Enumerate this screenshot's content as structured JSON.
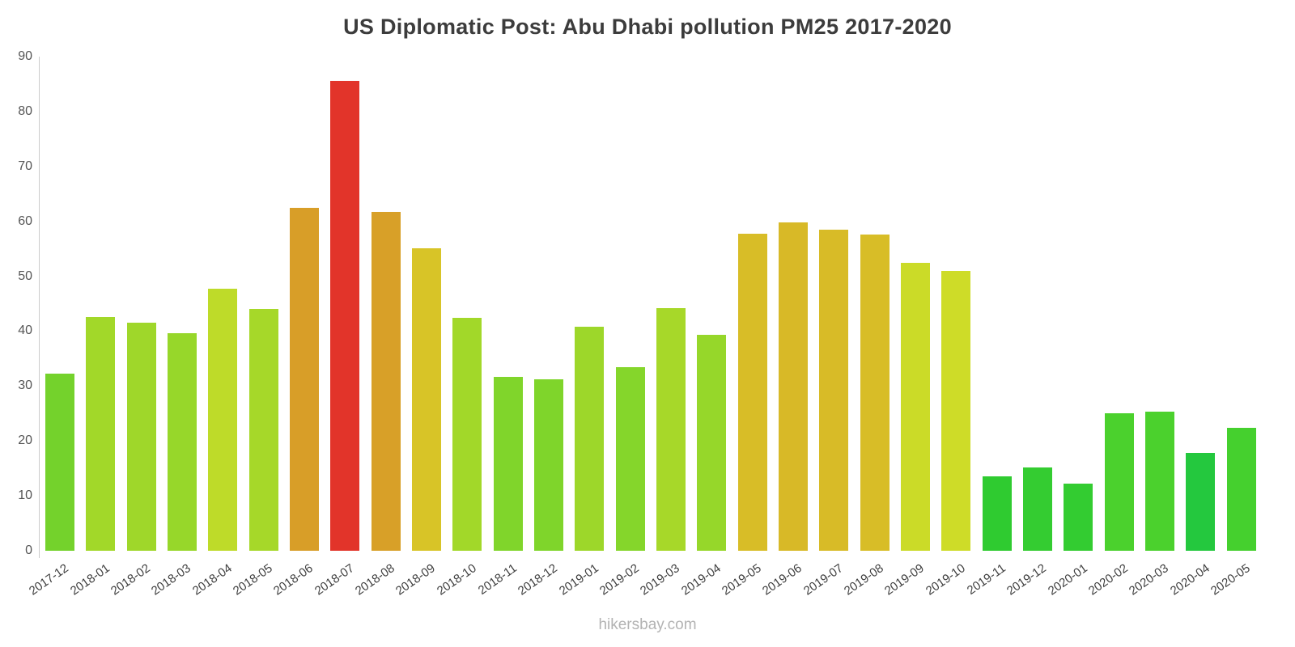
{
  "title": "US Diplomatic Post: Abu Dhabi pollution PM25 2017-2020",
  "footer": "hikersbay.com",
  "chart_data": {
    "type": "bar",
    "title": "US Diplomatic Post: Abu Dhabi pollution PM25 2017-2020",
    "xlabel": "",
    "ylabel": "",
    "ylim": [
      0,
      90
    ],
    "yticks": [
      0,
      10,
      20,
      30,
      40,
      50,
      60,
      70,
      80,
      90
    ],
    "grid": false,
    "legend": "none",
    "categories": [
      "2017-12",
      "2018-01",
      "2018-02",
      "2018-03",
      "2018-04",
      "2018-05",
      "2018-06",
      "2018-07",
      "2018-08",
      "2018-09",
      "2018-10",
      "2018-11",
      "2018-12",
      "2019-01",
      "2019-02",
      "2019-03",
      "2019-04",
      "2019-05",
      "2019-06",
      "2019-07",
      "2019-08",
      "2019-09",
      "2019-10",
      "2019-11",
      "2019-12",
      "2020-01",
      "2020-02",
      "2020-03",
      "2020-04",
      "2020-05"
    ],
    "values": [
      32.3,
      42.6,
      41.6,
      39.6,
      47.8,
      44.0,
      62.4,
      85.6,
      61.7,
      55.1,
      42.4,
      31.7,
      31.3,
      40.8,
      33.4,
      44.2,
      39.3,
      57.7,
      59.8,
      58.5,
      57.6,
      52.4,
      50.9,
      13.5,
      15.2,
      12.3,
      25.1,
      25.4,
      17.8,
      22.4
    ],
    "colors": [
      "#74d22c",
      "#a2d829",
      "#9fd72a",
      "#97d72a",
      "#bedb29",
      "#a6d829",
      "#d89e28",
      "#e2342a",
      "#d8a028",
      "#d8c427",
      "#a2d829",
      "#80d52b",
      "#7fd52b",
      "#9dd72a",
      "#85d62b",
      "#a7d829",
      "#96d72a",
      "#d8bd27",
      "#d8b927",
      "#d8bb27",
      "#d8bd27",
      "#cbdb28",
      "#cedc28",
      "#2fcb30",
      "#34cc31",
      "#33cc31",
      "#4bd12d",
      "#4bd12d",
      "#24c83e",
      "#45d02e"
    ]
  }
}
